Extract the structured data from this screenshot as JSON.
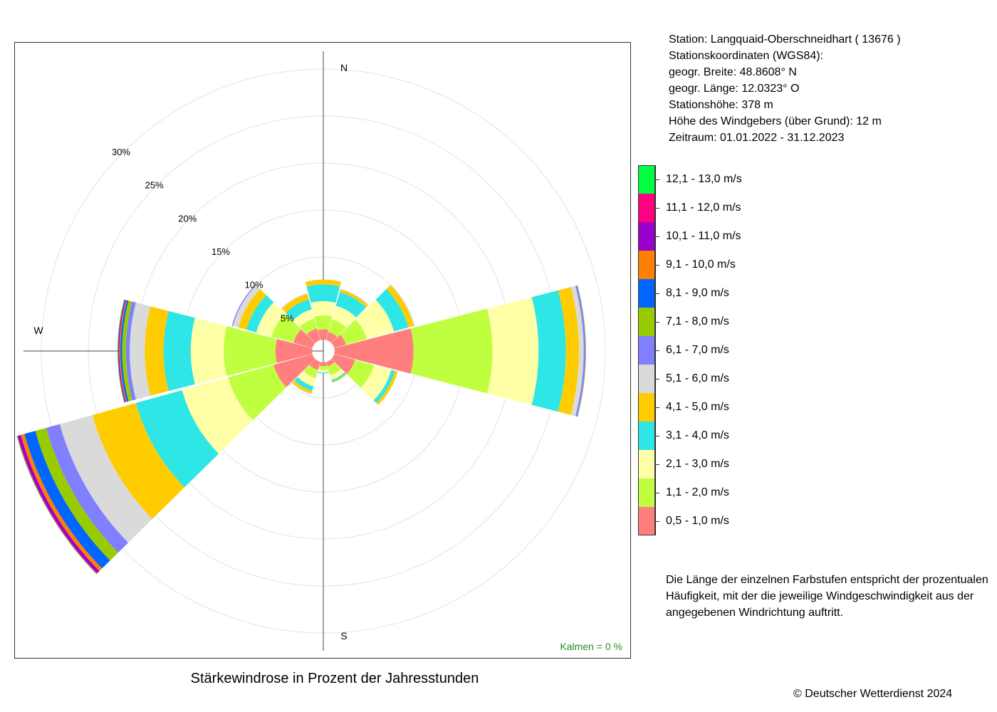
{
  "station": {
    "line1": "Station:  Langquaid-Oberschneidhart  ( 13676 )",
    "line2": "Stationskoordinaten (WGS84):",
    "line3": "geogr. Breite: 48.8608° N",
    "line4": "geogr. Länge: 12.0323° O",
    "line5": "Stationshöhe: 378 m",
    "line6": "Höhe des Windgebers (über Grund): 12 m",
    "line7": "Zeitraum: 01.01.2022 - 31.12.2023"
  },
  "note": "Die Länge der einzelnen Farbstufen entspricht der prozentualen Häufigkeit, mit der die jeweilige Windgeschwindigkeit aus der angegebenen Windrichtung auftritt.",
  "caption": "Stärkewindrose in Prozent der Jahresstunden",
  "copyright": "© Deutscher Wetterdienst  2024",
  "calm": "Kalmen  =  0 %",
  "chart_data": {
    "type": "rose",
    "title": "Stärkewindrose in Prozent der Jahresstunden",
    "direction_labels": [
      {
        "label": "N",
        "angle": 0
      },
      {
        "label": "W",
        "angle": 270
      },
      {
        "label": "S",
        "angle": 180
      }
    ],
    "rings": [
      5,
      10,
      15,
      20,
      25,
      30
    ],
    "ring_labels": [
      "5%",
      "10%",
      "15%",
      "20%",
      "25%",
      "30%"
    ],
    "rmax": 30,
    "inner_radius": 1.2,
    "bins": [
      {
        "label": "0,5 - 1,0 m/s",
        "color": "#ff7f7f"
      },
      {
        "label": "1,1 - 2,0 m/s",
        "color": "#bfff3f"
      },
      {
        "label": "2,1 - 3,0 m/s",
        "color": "#ffffa8"
      },
      {
        "label": "3,1 - 4,0 m/s",
        "color": "#2ee6e6"
      },
      {
        "label": "4,1 - 5,0 m/s",
        "color": "#ffcc00"
      },
      {
        "label": "5,1 - 6,0 m/s",
        "color": "#dadada"
      },
      {
        "label": "6,1 - 7,0 m/s",
        "color": "#7f7fff"
      },
      {
        "label": "7,1 - 8,0 m/s",
        "color": "#99cc00"
      },
      {
        "label": "8,1 - 9,0 m/s",
        "color": "#0066ff"
      },
      {
        "label": "9,1 - 10,0 m/s",
        "color": "#ff8000"
      },
      {
        "label": "10,1 - 11,0 m/s",
        "color": "#9900cc"
      },
      {
        "label": "11,1 - 12,0 m/s",
        "color": "#ff0080"
      },
      {
        "label": "12,1 - 13,0 m/s",
        "color": "#00ff40"
      }
    ],
    "sectors": [
      {
        "dir": 0,
        "values": [
          1.1,
          1.5,
          1.5,
          1.8,
          0.5
        ]
      },
      {
        "dir": 30,
        "values": [
          0.9,
          1.4,
          1.5,
          1.5,
          0.3,
          0.1
        ]
      },
      {
        "dir": 60,
        "values": [
          1.3,
          2.3,
          3.0,
          1.6,
          0.6,
          0.1
        ]
      },
      {
        "dir": 90,
        "values": [
          8.4,
          8.4,
          4.9,
          2.9,
          1.4,
          0.5,
          0.2,
          0.05
        ]
      },
      {
        "dir": 120,
        "values": [
          2.3,
          2.1,
          1.9,
          0.4,
          0.3
        ]
      },
      {
        "dir": 150,
        "values": [
          0.5,
          1.0,
          0.5,
          0.2,
          0.1
        ]
      },
      {
        "dir": 180,
        "values": [
          0.4,
          0.4,
          0.3,
          0.1
        ]
      },
      {
        "dir": 210,
        "values": [
          0.9,
          0.9,
          0.9,
          0.5,
          0.3,
          0.1
        ]
      },
      {
        "dir": 240,
        "values": [
          4.3,
          5.0,
          5.1,
          5.1,
          4.8,
          3.6,
          1.5,
          1.2,
          1.2,
          0.4,
          0.3,
          0.1,
          0.05
        ]
      },
      {
        "dir": 270,
        "values": [
          3.9,
          5.5,
          3.5,
          2.9,
          2.0,
          1.6,
          0.4,
          0.4,
          0.2,
          0.1,
          0.1,
          0.05,
          0.05
        ]
      },
      {
        "dir": 300,
        "values": [
          2.1,
          2.4,
          1.7,
          1.1,
          0.9,
          0.6,
          0.1
        ]
      },
      {
        "dir": 330,
        "values": [
          1.3,
          1.1,
          1.0,
          1.1,
          0.6,
          0.1
        ]
      }
    ]
  }
}
